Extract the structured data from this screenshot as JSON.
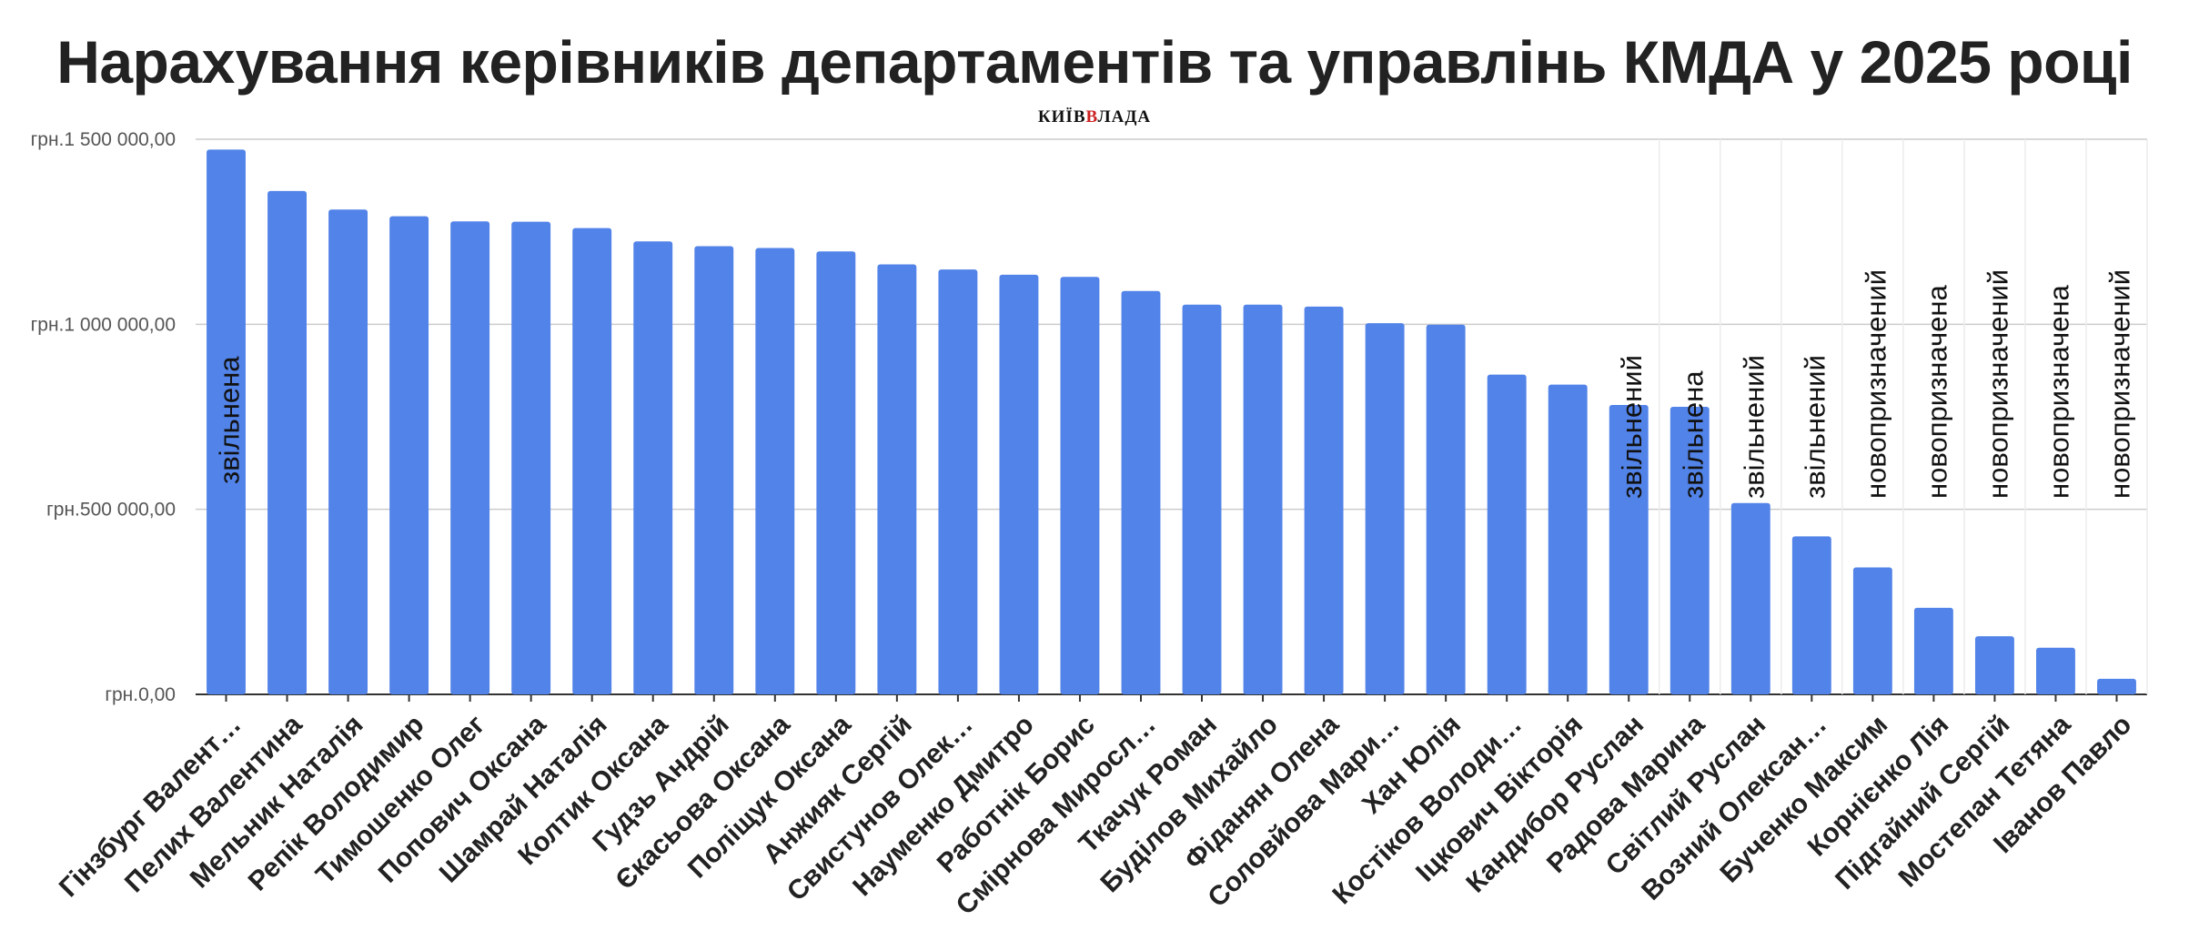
{
  "header": {
    "title": "Нарахування керівників департаментів та управлінь КМДА у 2025 році",
    "watermark_main": "КИЇВ",
    "watermark_accent": "В",
    "watermark_rest": "ЛАДА"
  },
  "chart_data": {
    "type": "bar",
    "title": "Нарахування керівників департаментів та управлінь КМДА у 2025 році",
    "xlabel": "",
    "ylabel": "",
    "ylim": [
      0,
      1500000
    ],
    "yticks": [
      {
        "value": 0,
        "label": "грн.0,00"
      },
      {
        "value": 500000,
        "label": "грн.500 000,00"
      },
      {
        "value": 1000000,
        "label": "грн.1 000 000,00"
      },
      {
        "value": 1500000,
        "label": "грн.1 500 000,00"
      }
    ],
    "grid": true,
    "legend": "none",
    "bar_color": "#5283e8",
    "categories": [
      "Гінзбург Валент…",
      "Пелих Валентина",
      "Мельник Наталія",
      "Репік Володимир",
      "Тимошенко Олег",
      "Попович Оксана",
      "Шамрай Наталія",
      "Колтик Оксана",
      "Гудзь Андрій",
      "Єкасьова Оксана",
      "Поліщук Оксана",
      "Анжияк Сергій",
      "Свистунов Олек…",
      "Науменко Дмитро",
      "Работнік Борис",
      "Смірнова Миросл…",
      "Ткачук Роман",
      "Буділов Михайло",
      "Фіданян Олена",
      "Соловйова Мари…",
      "Хан Юлія",
      "Костіков Володи…",
      "Іцкович Вікторія",
      "Кандибор Руслан",
      "Радова Марина",
      "Світлий Руслан",
      "Возний Олексан…",
      "Бученко Максим",
      "Корнієнко Лія",
      "Підгайний Сергій",
      "Мостепан Тетяна",
      "Іванов Павло"
    ],
    "values": [
      1472000,
      1360000,
      1310000,
      1292000,
      1278000,
      1277000,
      1260000,
      1224000,
      1211000,
      1206000,
      1197000,
      1162000,
      1148000,
      1134000,
      1128000,
      1090000,
      1053000,
      1053000,
      1048000,
      1003000,
      999000,
      864000,
      837000,
      782000,
      777000,
      517000,
      427000,
      343000,
      234000,
      157000,
      126000,
      42000
    ],
    "annotations": [
      {
        "index": 0,
        "text": "звільнена"
      },
      {
        "index": 23,
        "text": "звільнений"
      },
      {
        "index": 24,
        "text": "звільнена"
      },
      {
        "index": 25,
        "text": "звільнений"
      },
      {
        "index": 26,
        "text": "звільнений"
      },
      {
        "index": 27,
        "text": "новопризначений"
      },
      {
        "index": 28,
        "text": "новопризначена"
      },
      {
        "index": 29,
        "text": "новопризначений"
      },
      {
        "index": 30,
        "text": "новопризначена"
      },
      {
        "index": 31,
        "text": "новопризначений"
      }
    ]
  }
}
